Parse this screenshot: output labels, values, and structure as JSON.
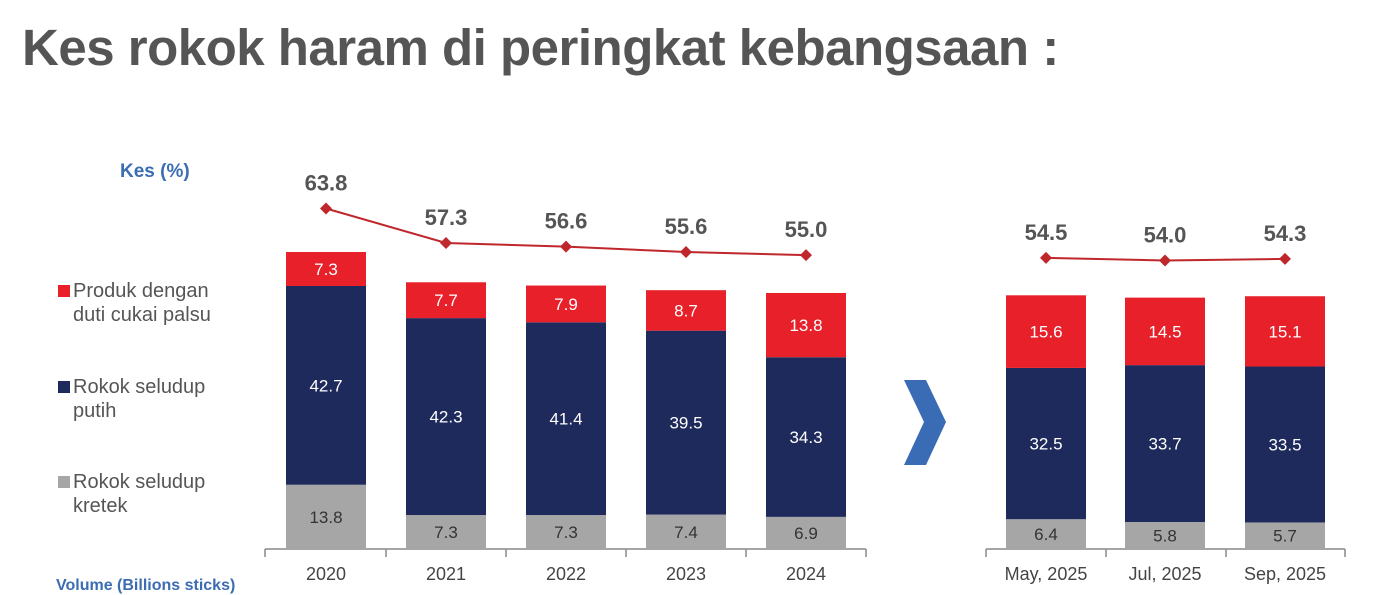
{
  "title": "Kes rokok haram di peringkat kebangsaan :",
  "kes_label": "Kes (%)",
  "volume_label": "Volume (Billions sticks)",
  "chart_data": {
    "type": "bar",
    "stacked": true,
    "categories": [
      "2020",
      "2021",
      "2022",
      "2023",
      "2024",
      "May, 2025",
      "Jul, 2025",
      "Sep, 2025"
    ],
    "series": [
      {
        "name": "Rokok seludup kretek",
        "color": "#a6a6a6",
        "values": [
          13.8,
          7.3,
          7.3,
          7.4,
          6.9,
          6.4,
          5.8,
          5.7
        ]
      },
      {
        "name": "Rokok seludup putih",
        "color": "#1f2a5c",
        "values": [
          42.7,
          42.3,
          41.4,
          39.5,
          34.3,
          32.5,
          33.7,
          33.5
        ]
      },
      {
        "name": "Produk dengan duti cukai palsu",
        "color": "#e8202a",
        "values": [
          7.3,
          7.7,
          7.9,
          8.7,
          13.8,
          15.6,
          14.5,
          15.1
        ]
      }
    ],
    "totals": {
      "name": "Total",
      "type": "line",
      "color": "#c0272d",
      "values": [
        63.8,
        57.3,
        56.6,
        55.6,
        55.0,
        54.5,
        54.0,
        54.3
      ],
      "labels": [
        "63.8",
        "57.3",
        "56.6",
        "55.6",
        "55.0",
        "54.5",
        "54.0",
        "54.3"
      ]
    },
    "value_labels": [
      [
        "13.8",
        "7.3",
        "7.3",
        "7.4",
        "6.9",
        "6.4",
        "5.8",
        "5.7"
      ],
      [
        "42.7",
        "42.3",
        "41.4",
        "39.5",
        "34.3",
        "32.5",
        "33.7",
        "33.5"
      ],
      [
        "7.3",
        "7.7",
        "7.9",
        "8.7",
        "13.8",
        "15.6",
        "14.5",
        "15.1"
      ]
    ],
    "legend": [
      "Produk dengan duti cukai palsu",
      "Rokok seludup putih",
      "Rokok seludup kretek"
    ],
    "legend_lines": [
      [
        "Produk dengan",
        "duti cukai palsu"
      ],
      [
        "Rokok seludup",
        "putih"
      ],
      [
        "Rokok seludup",
        "kretek"
      ]
    ],
    "legend_position": "left",
    "ylabel": "Kes (%)",
    "grid": false,
    "ylim": [
      0,
      70
    ]
  }
}
